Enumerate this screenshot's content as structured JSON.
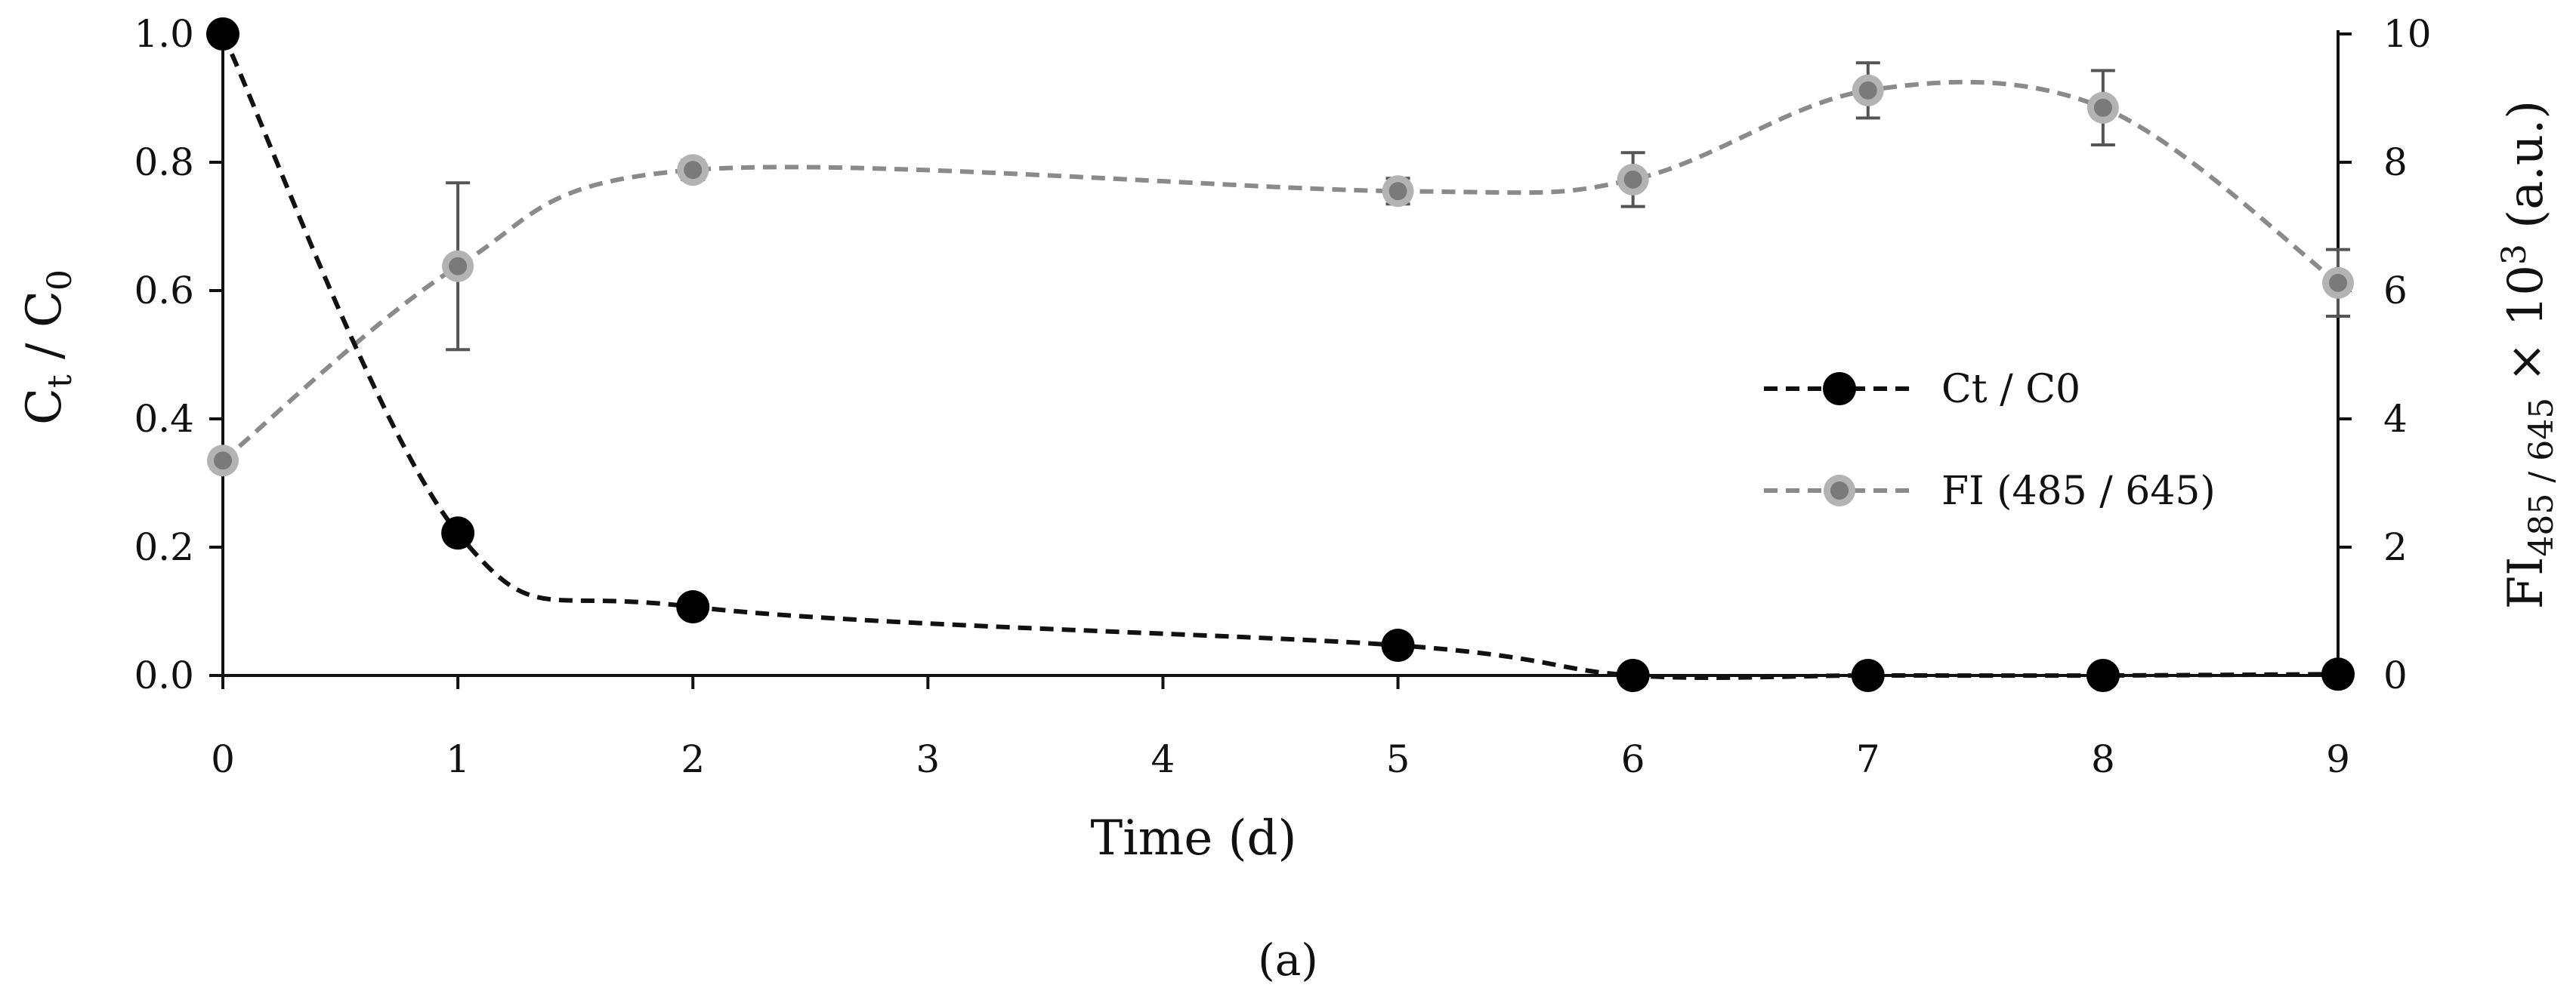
{
  "chart_data": {
    "type": "line",
    "xlabel": "Time (d)",
    "categories": [
      "0",
      "1",
      "2",
      "3",
      "4",
      "5",
      "6",
      "7",
      "8",
      "9"
    ],
    "y_left": {
      "label_main": "C",
      "label_sub1": "t",
      "label_mid": " / C",
      "label_sub2": "0",
      "ylim": [
        0,
        1.0
      ],
      "ticks": [
        "0.0",
        "0.2",
        "0.4",
        "0.6",
        "0.8",
        "1.0"
      ]
    },
    "y_right": {
      "label_main": "FI",
      "label_sub": "485 / 645",
      "label_mid": " × 10",
      "label_sup": "3",
      "label_tail": " (a.u.)",
      "ylim": [
        0,
        10
      ],
      "ticks": [
        "0",
        "2",
        "4",
        "6",
        "8",
        "10"
      ]
    },
    "series": [
      {
        "name": "Ct / C0",
        "axis": "left",
        "color": "#111111",
        "marker_color": "#000000",
        "x": [
          0,
          1,
          2,
          5,
          6,
          7,
          8,
          9
        ],
        "values": [
          1.0,
          0.222,
          0.107,
          0.047,
          0.0,
          0.0,
          0.0,
          0.002
        ]
      },
      {
        "name": "FI (485 / 645)",
        "axis": "right",
        "color": "#8a8a8a",
        "marker_color": "#7a7a7a",
        "marker_edge": "#b3b3b3",
        "x": [
          0,
          1,
          2,
          5,
          6,
          7,
          8,
          9
        ],
        "values": [
          3.35,
          6.38,
          7.88,
          7.55,
          7.73,
          9.12,
          8.85,
          6.12
        ],
        "error": [
          0.0,
          1.3,
          0.15,
          0.2,
          0.42,
          0.43,
          0.58,
          0.52
        ]
      }
    ],
    "legend_position": "center-right",
    "caption": "(a)"
  }
}
